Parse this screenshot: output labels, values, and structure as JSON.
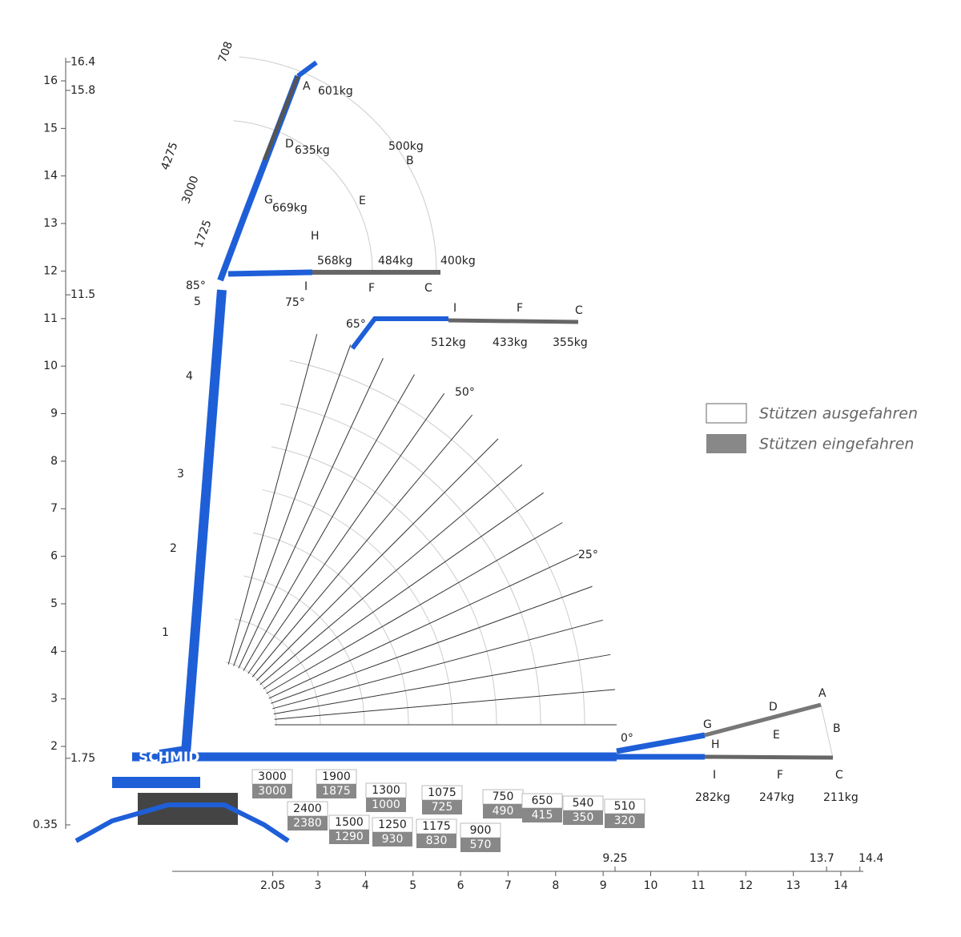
{
  "brand": "SCHMID",
  "axes": {
    "y_ticks": [
      2,
      3,
      4,
      5,
      6,
      7,
      8,
      9,
      10,
      11,
      12,
      13,
      14,
      15,
      16
    ],
    "y_special": [
      16.4,
      15.8,
      11.5,
      1.75,
      0.35
    ],
    "x_ticks": [
      3,
      4,
      5,
      6,
      7,
      8,
      9,
      10,
      11,
      12,
      13,
      14
    ],
    "x_special": [
      2.05,
      9.25,
      13.7,
      14.4
    ]
  },
  "load_table": [
    {
      "extended": 3000,
      "retracted": 3000
    },
    {
      "extended": 2400,
      "retracted": 2380
    },
    {
      "extended": 1900,
      "retracted": 1875
    },
    {
      "extended": 1500,
      "retracted": 1290
    },
    {
      "extended": 1300,
      "retracted": 1000
    },
    {
      "extended": 1250,
      "retracted": 930
    },
    {
      "extended": 1075,
      "retracted": 725
    },
    {
      "extended": 1175,
      "retracted": 830
    },
    {
      "extended": 900,
      "retracted": 570
    },
    {
      "extended": 750,
      "retracted": 490
    },
    {
      "extended": 650,
      "retracted": 415
    },
    {
      "extended": 540,
      "retracted": 350
    },
    {
      "extended": 510,
      "retracted": 320
    }
  ],
  "boom_labels": [
    "A",
    "601kg",
    "D",
    "635kg",
    "G",
    "669kg",
    "500kg",
    "B",
    "E",
    "H",
    "568kg",
    "484kg",
    "400kg",
    "I",
    "F",
    "C",
    "I",
    "F",
    "C",
    "512kg",
    "433kg",
    "355kg",
    "G",
    "D",
    "A",
    "H",
    "E",
    "B",
    "I",
    "F",
    "C",
    "282kg",
    "247kg",
    "211kg"
  ],
  "dimensions": [
    708,
    4275,
    3000,
    1725
  ],
  "angles": [
    "85°",
    "75°",
    "65°",
    "50°",
    "25°",
    "0°"
  ],
  "sections": [
    1,
    2,
    3,
    4,
    5
  ],
  "legend": {
    "extended": "Stützen ausgefahren",
    "retracted": "Stützen eingefahren"
  }
}
